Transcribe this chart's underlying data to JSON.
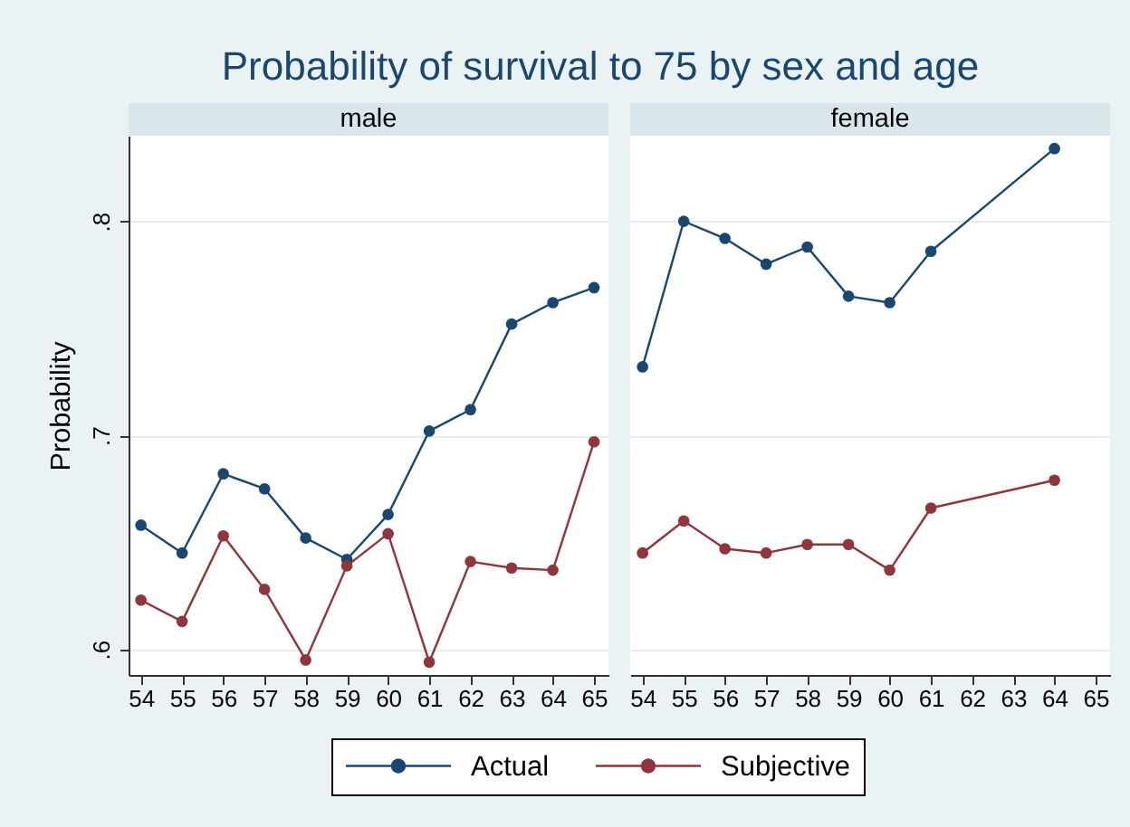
{
  "chart_data": [
    {
      "type": "line",
      "title": "Probability of survival to 75 by sex and age",
      "subtitle": "male",
      "ylabel": "Probability",
      "x": [
        54,
        55,
        56,
        57,
        58,
        59,
        60,
        61,
        62,
        63,
        64,
        65
      ],
      "series": [
        {
          "name": "Actual",
          "color": "#1a476f",
          "values": [
            0.658,
            0.645,
            0.682,
            0.675,
            0.652,
            0.642,
            0.663,
            0.702,
            0.712,
            0.752,
            0.762,
            0.769
          ]
        },
        {
          "name": "Subjective",
          "color": "#90353b",
          "values": [
            0.623,
            0.613,
            0.653,
            0.628,
            0.595,
            0.639,
            0.654,
            0.594,
            0.641,
            0.638,
            0.637,
            0.697
          ]
        }
      ],
      "xlim": [
        53.7,
        65.35
      ],
      "ylim": [
        0.588,
        0.84
      ],
      "xticks": [
        54,
        55,
        56,
        57,
        58,
        59,
        60,
        61,
        62,
        63,
        64,
        65
      ],
      "yticks": [
        {
          "value": 0.6,
          "label": ".6"
        },
        {
          "value": 0.7,
          "label": ".7"
        },
        {
          "value": 0.8,
          "label": ".8"
        }
      ],
      "grid": "y",
      "legend": "bottom",
      "marker": "circle"
    },
    {
      "type": "line",
      "subtitle": "female",
      "x": [
        54,
        55,
        56,
        57,
        58,
        59,
        60,
        61,
        64
      ],
      "series": [
        {
          "name": "Actual",
          "color": "#1a476f",
          "values": [
            0.732,
            0.8,
            0.792,
            0.78,
            0.788,
            0.765,
            0.762,
            0.786,
            0.834
          ]
        },
        {
          "name": "Subjective",
          "color": "#90353b",
          "values": [
            0.645,
            0.66,
            0.647,
            0.645,
            0.649,
            0.649,
            0.637,
            0.666,
            0.679
          ]
        }
      ],
      "xlim": [
        53.7,
        65.35
      ],
      "ylim": [
        0.588,
        0.84
      ],
      "xticks": [
        54,
        55,
        56,
        57,
        58,
        59,
        60,
        61,
        62,
        63,
        64,
        65
      ],
      "yticks": [
        0.6,
        0.7,
        0.8
      ],
      "grid": "y",
      "tick_labels": "x",
      "marker": "circle"
    }
  ]
}
